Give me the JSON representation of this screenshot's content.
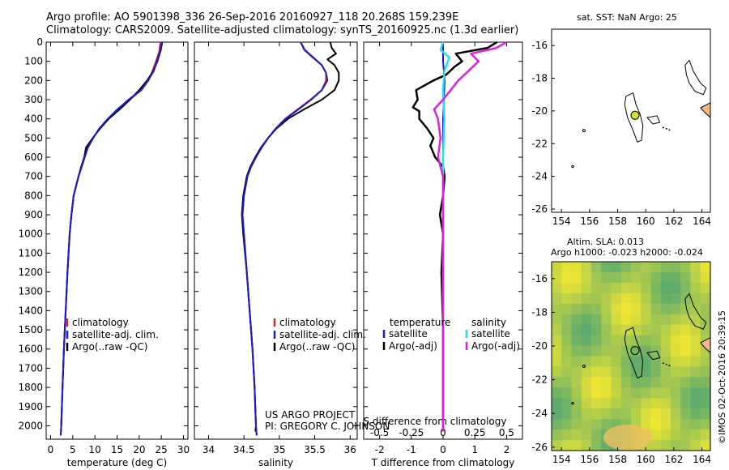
{
  "header": {
    "line1": "Argo profile: AO 5901398_336 26-Sep-2016 20160927_118 20.268S 159.239E",
    "line2": "Climatology: CARS2009. Satellite-adjusted climatology: synTS_20160925.nc (1.3d earlier)"
  },
  "colors": {
    "climatology": "#e02020",
    "satellite": "#1a1ad8",
    "argo": "#000000",
    "salinity_sat": "#22e0f0",
    "salinity_argo": "#e020e0",
    "sst_marker": "#d8e030",
    "land": "#f4b888"
  },
  "chart_data": [
    {
      "type": "line",
      "panel": "temperature",
      "xlabel": "temperature (deg C)",
      "ylabel": "",
      "xlim": [
        -1,
        31
      ],
      "ylim": [
        2070,
        0
      ],
      "x_ticks": [
        "0",
        "5",
        "10",
        "15",
        "20",
        "25",
        "30"
      ],
      "y_ticks": [
        "0",
        "100",
        "200",
        "300",
        "400",
        "500",
        "600",
        "700",
        "800",
        "900",
        "1000",
        "1100",
        "1200",
        "1300",
        "1400",
        "1500",
        "1600",
        "1700",
        "1800",
        "1900",
        "2000"
      ],
      "legend": [
        "climatology",
        "satellite-adj. clim.",
        "Argo(..raw -QC)"
      ],
      "series": [
        {
          "name": "climatology",
          "depth": [
            0,
            50,
            100,
            150,
            200,
            250,
            300,
            350,
            400,
            450,
            500,
            550,
            600,
            650,
            700,
            800,
            900,
            1000,
            1200,
            1400,
            1600,
            1800,
            2000,
            2050
          ],
          "values": [
            24.8,
            24.5,
            23.8,
            23.0,
            22.1,
            20.5,
            17.8,
            15.3,
            13.0,
            11.0,
            9.6,
            8.4,
            7.7,
            7.0,
            6.3,
            5.2,
            4.7,
            4.3,
            3.8,
            3.4,
            3.0,
            2.7,
            2.4,
            2.3
          ]
        },
        {
          "name": "satellite-adj. clim.",
          "depth": [
            0,
            50,
            100,
            150,
            200,
            250,
            300,
            350,
            400,
            450,
            500,
            550,
            600,
            650,
            700,
            800,
            900,
            1000,
            1200,
            1400,
            1600,
            1800,
            2000,
            2050
          ],
          "values": [
            25.1,
            24.7,
            24.0,
            23.3,
            22.0,
            20.4,
            17.6,
            15.1,
            12.9,
            11.0,
            9.6,
            8.4,
            7.7,
            7.0,
            6.3,
            5.2,
            4.7,
            4.3,
            3.8,
            3.4,
            3.0,
            2.7,
            2.4,
            2.3
          ]
        },
        {
          "name": "Argo(..raw -QC)",
          "depth": [
            0,
            40,
            100,
            150,
            200,
            250,
            300,
            350,
            400,
            450,
            500,
            550,
            600,
            650,
            700,
            800,
            900,
            1000,
            1200,
            1400,
            1600,
            1800,
            2000,
            2030
          ],
          "values": [
            25.2,
            24.9,
            24.1,
            23.2,
            21.8,
            20.0,
            17.9,
            15.6,
            13.1,
            11.2,
            9.5,
            8.0,
            7.6,
            6.9,
            6.3,
            5.2,
            4.7,
            4.3,
            3.8,
            3.4,
            3.0,
            2.7,
            2.4,
            2.35
          ]
        }
      ]
    },
    {
      "type": "line",
      "panel": "salinity",
      "xlabel": "salinity",
      "xlim": [
        33.8,
        36.1
      ],
      "ylim": [
        2070,
        0
      ],
      "x_ticks": [
        "34",
        "34.5",
        "35",
        "35.5",
        "36"
      ],
      "legend": [
        "climatology",
        "satellite-adj. clim.",
        "Argo(..raw -QC)"
      ],
      "series": [
        {
          "name": "climatology",
          "depth": [
            0,
            40,
            80,
            120,
            160,
            200,
            250,
            300,
            350,
            400,
            450,
            500,
            550,
            600,
            650,
            700,
            800,
            900,
            1000,
            1200,
            1400,
            1600,
            1800,
            2000,
            2050
          ],
          "values": [
            35.3,
            35.35,
            35.47,
            35.6,
            35.66,
            35.66,
            35.6,
            35.44,
            35.26,
            35.08,
            34.95,
            34.84,
            34.75,
            34.67,
            34.6,
            34.55,
            34.5,
            34.48,
            34.5,
            34.54,
            34.58,
            34.62,
            34.65,
            34.67,
            34.68
          ]
        },
        {
          "name": "satellite-adj. clim.",
          "depth": [
            0,
            40,
            80,
            120,
            160,
            200,
            250,
            300,
            350,
            400,
            450,
            500,
            550,
            600,
            650,
            700,
            800,
            900,
            1000,
            1200,
            1400,
            1600,
            1800,
            2000,
            2050
          ],
          "values": [
            35.3,
            35.36,
            35.48,
            35.6,
            35.66,
            35.68,
            35.6,
            35.45,
            35.27,
            35.09,
            34.95,
            34.84,
            34.75,
            34.67,
            34.6,
            34.55,
            34.5,
            34.48,
            34.5,
            34.54,
            34.58,
            34.62,
            34.65,
            34.67,
            34.68
          ]
        },
        {
          "name": "Argo(..raw -QC)",
          "depth": [
            0,
            30,
            60,
            90,
            120,
            160,
            200,
            250,
            300,
            350,
            400,
            450,
            500,
            550,
            600,
            650,
            700,
            800,
            900,
            1000,
            1200,
            1400,
            1600,
            1800,
            2000,
            2030
          ],
          "values": [
            35.72,
            35.74,
            35.8,
            35.68,
            35.78,
            35.84,
            35.84,
            35.78,
            35.6,
            35.35,
            35.12,
            34.96,
            34.84,
            34.74,
            34.66,
            34.59,
            34.54,
            34.49,
            34.47,
            34.49,
            34.54,
            34.58,
            34.62,
            34.65,
            34.67,
            34.66
          ]
        }
      ]
    },
    {
      "type": "line",
      "panel": "difference",
      "xlabel": "T difference from climatology",
      "x2label": "S difference from climatology",
      "xlim": [
        -2.5,
        2.5
      ],
      "ylim": [
        2070,
        0
      ],
      "x_ticks": [
        "-2",
        "-1",
        "0",
        "1",
        "2"
      ],
      "x2_ticks": [
        "-0.5",
        "-0.25",
        "0",
        "0.25",
        "0.5"
      ],
      "legend_left_title": "temperature",
      "legend_right_title": "salinity",
      "legend": [
        "satellite",
        "Argo(-adj)",
        "satellite",
        "Argo(-adj)"
      ],
      "series": [
        {
          "name": "temperature satellite",
          "depth": [
            0,
            100,
            200,
            400,
            600,
            800,
            1000,
            1500,
            2000
          ],
          "values": [
            0.0,
            0.0,
            0.05,
            0.0,
            0.0,
            0.0,
            0.0,
            0.0,
            0.0
          ]
        },
        {
          "name": "temperature Argo(-adj)",
          "depth": [
            0,
            30,
            60,
            100,
            130,
            170,
            200,
            250,
            300,
            340,
            360,
            400,
            450,
            500,
            540,
            600,
            650,
            700,
            800,
            900,
            1000,
            1200,
            1500,
            1800,
            2000,
            2030
          ],
          "values": [
            1.7,
            1.4,
            0.4,
            0.6,
            0.35,
            0.1,
            -0.3,
            -0.85,
            -0.8,
            -0.95,
            -0.75,
            -0.75,
            -0.5,
            -0.3,
            -0.4,
            -0.25,
            0.0,
            0.05,
            0.0,
            -0.1,
            0.0,
            -0.05,
            0.0,
            0.0,
            0.0,
            0.0
          ]
        },
        {
          "name": "salinity satellite",
          "depth": [
            0,
            40,
            80,
            150,
            250,
            400,
            600,
            800,
            1000,
            1500,
            2000
          ],
          "values": [
            0.0,
            -0.02,
            0.05,
            0.01,
            0.0,
            0.01,
            0.0,
            0.0,
            0.0,
            0.0,
            0.0
          ]
        },
        {
          "name": "salinity Argo(-adj)",
          "depth": [
            0,
            30,
            60,
            100,
            150,
            200,
            250,
            300,
            350,
            400,
            500,
            600,
            700,
            800,
            1000,
            1500,
            2000,
            2030
          ],
          "values": [
            0.5,
            0.42,
            0.22,
            0.28,
            0.2,
            0.12,
            0.06,
            0.0,
            -0.07,
            -0.04,
            -0.02,
            -0.04,
            0.0,
            0.0,
            0.0,
            0.0,
            0.0,
            0.0
          ]
        }
      ]
    }
  ],
  "credits": {
    "project": "US ARGO PROJECT",
    "pi": "PI: GREGORY C. JOHNSON"
  },
  "sst_map": {
    "title": "sat. SST: NaN Argo: 25",
    "x_ticks": [
      "154",
      "156",
      "158",
      "160",
      "162",
      "164"
    ],
    "y_ticks": [
      "-16",
      "-18",
      "-20",
      "-22",
      "-24",
      "-26"
    ]
  },
  "sla_map": {
    "title1": "Altim. SLA: 0.013",
    "title2": "Argo h1000: -0.023 h2000: -0.024",
    "x_ticks": [
      "154",
      "156",
      "158",
      "160",
      "162",
      "164"
    ],
    "y_ticks": [
      "-16",
      "-18",
      "-20",
      "-22",
      "-24",
      "-26"
    ]
  },
  "footer_vertical": "©IMOS 02-Oct-2016 20:39:15"
}
